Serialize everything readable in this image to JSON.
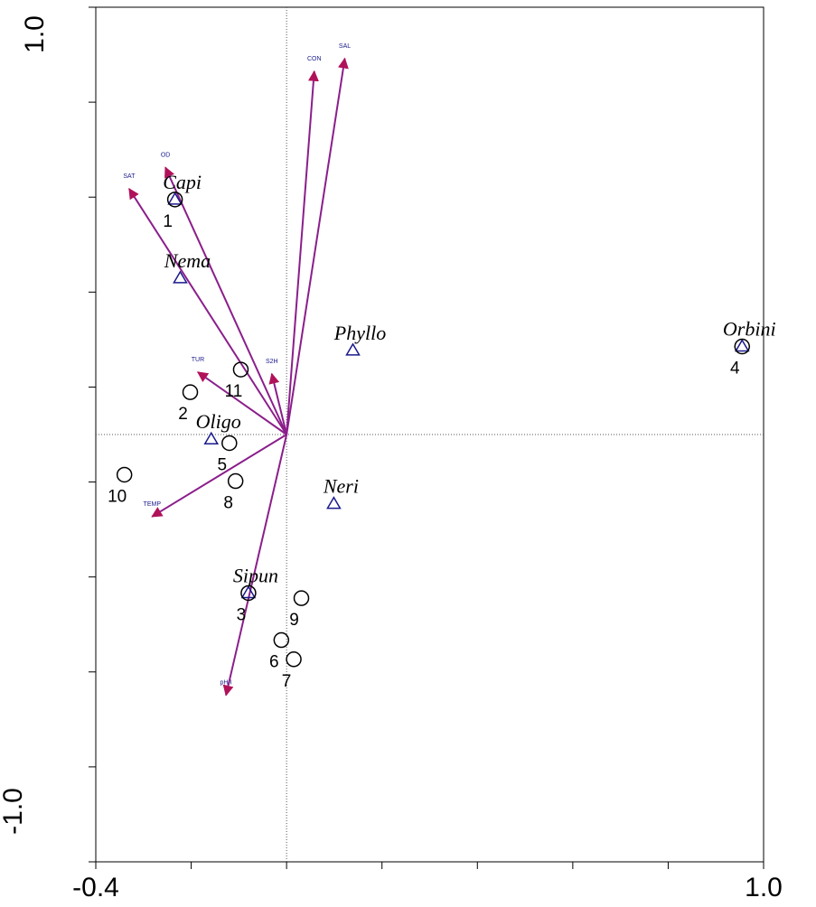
{
  "chart_data": {
    "type": "scatter",
    "title": "",
    "xlabel": "",
    "ylabel": "",
    "xlim": [
      -0.4,
      1.0
    ],
    "ylim": [
      -1.0,
      1.0
    ],
    "x_tick_labels": [
      "-0.4",
      "1.0"
    ],
    "y_tick_labels": [
      "1.0",
      "-1.0"
    ],
    "grid": false,
    "colors": {
      "arrow": "#8B1E8B",
      "arrowhead": "#B0125A",
      "species": "#1a1a8c",
      "site": "#000000",
      "env_label": "#1a1a8c"
    },
    "env_vectors": [
      {
        "label": "CON",
        "x": 0.058,
        "y": 0.85
      },
      {
        "label": "SAL",
        "x": 0.122,
        "y": 0.88
      },
      {
        "label": "OD",
        "x": -0.254,
        "y": 0.625
      },
      {
        "label": "SAT",
        "x": -0.33,
        "y": 0.575
      },
      {
        "label": "TUR",
        "x": -0.186,
        "y": 0.146
      },
      {
        "label": "S2H",
        "x": -0.031,
        "y": 0.142
      },
      {
        "label": "TEMP",
        "x": -0.282,
        "y": -0.192
      },
      {
        "label": "pH-I",
        "x": -0.127,
        "y": -0.61
      }
    ],
    "species": [
      {
        "label": "Capi",
        "x": -0.234,
        "y": 0.55
      },
      {
        "label": "Nema",
        "x": -0.223,
        "y": 0.366
      },
      {
        "label": "Phyllo",
        "x": 0.139,
        "y": 0.197
      },
      {
        "label": "Orbini",
        "x": 0.955,
        "y": 0.206
      },
      {
        "label": "Oligo",
        "x": -0.158,
        "y": -0.011
      },
      {
        "label": "Neri",
        "x": 0.099,
        "y": -0.162
      },
      {
        "label": "Sipun",
        "x": -0.08,
        "y": -0.371
      }
    ],
    "sites": [
      {
        "label": "1",
        "x": -0.234,
        "y": 0.55
      },
      {
        "label": "2",
        "x": -0.202,
        "y": 0.099
      },
      {
        "label": "3",
        "x": -0.08,
        "y": -0.371
      },
      {
        "label": "4",
        "x": 0.955,
        "y": 0.206
      },
      {
        "label": "5",
        "x": -0.12,
        "y": -0.02
      },
      {
        "label": "6",
        "x": -0.011,
        "y": -0.481
      },
      {
        "label": "7",
        "x": 0.015,
        "y": -0.526
      },
      {
        "label": "8",
        "x": -0.107,
        "y": -0.109
      },
      {
        "label": "9",
        "x": 0.031,
        "y": -0.383
      },
      {
        "label": "10",
        "x": -0.34,
        "y": -0.094
      },
      {
        "label": "11",
        "x": -0.096,
        "y": 0.152
      }
    ]
  }
}
